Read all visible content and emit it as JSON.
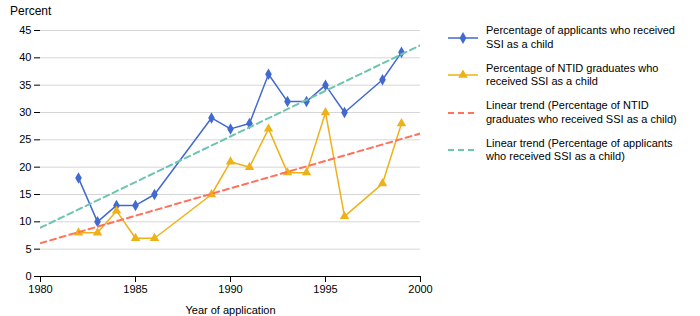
{
  "chart_data": {
    "type": "line",
    "xlabel": "Year of application",
    "ylabel": "Percent",
    "xlim": [
      1980,
      2000
    ],
    "xticks": [
      1980,
      1985,
      1990,
      1995,
      2000
    ],
    "ylim": [
      0,
      45
    ],
    "yticks": [
      0,
      5,
      10,
      15,
      20,
      25,
      30,
      35,
      40,
      45
    ],
    "grid": "y",
    "legend": "right",
    "series": [
      {
        "name": "Percentage of applicants who received\nSSI as a child",
        "x": [
          1982,
          1983,
          1984,
          1985,
          1986,
          1989,
          1990,
          1991,
          1992,
          1993,
          1994,
          1995,
          1996,
          1998,
          1999
        ],
        "values": [
          18,
          10,
          13,
          13,
          15,
          29,
          27,
          28,
          37,
          32,
          32,
          35,
          30,
          36,
          41
        ],
        "marker": "diamond",
        "line_style": "solid"
      },
      {
        "name": "Percentage of NTID graduates who\nreceived SSI as a child",
        "x": [
          1982,
          1983,
          1984,
          1985,
          1986,
          1989,
          1990,
          1991,
          1992,
          1993,
          1994,
          1995,
          1996,
          1998,
          1999
        ],
        "values": [
          8,
          8,
          12,
          7,
          7,
          15,
          21,
          20,
          27,
          19,
          19,
          30,
          11,
          17,
          28
        ],
        "marker": "triangle",
        "line_style": "solid"
      },
      {
        "name": "Linear trend (Percentage of NTID\ngraduates who received SSI as a child)",
        "x": [
          1980,
          2000
        ],
        "values": [
          6.107,
          26.1573
        ],
        "line_style": "dashed"
      },
      {
        "name": "Linear trend (Percentage of applicants\nwho received SSI as a child)",
        "x": [
          1980,
          2000
        ],
        "values": [
          8.9314,
          42.3109
        ],
        "line_style": "dashed"
      }
    ]
  }
}
